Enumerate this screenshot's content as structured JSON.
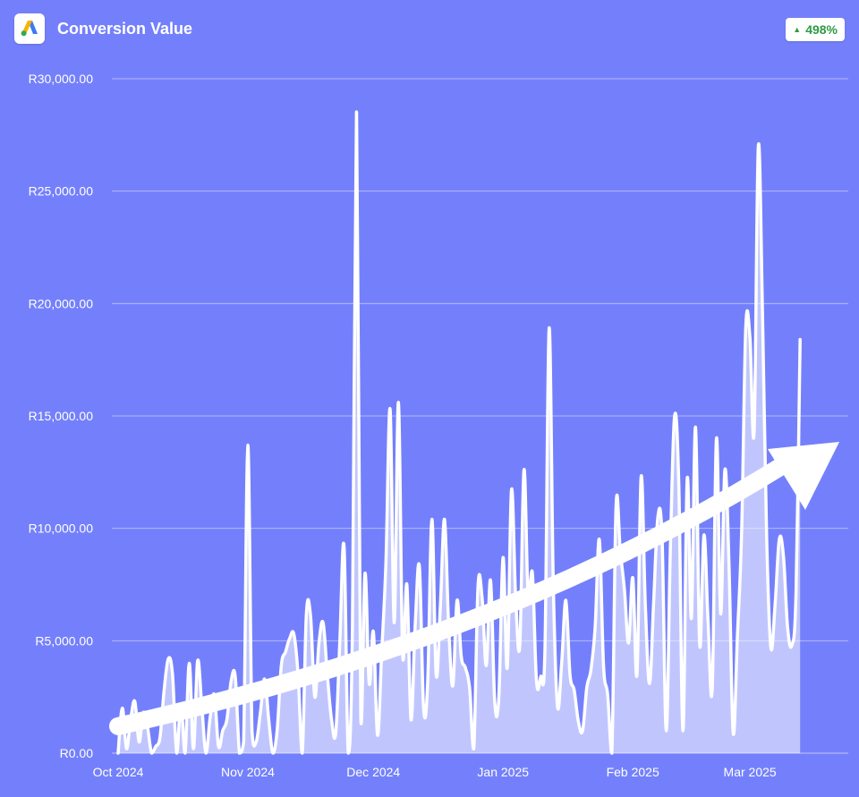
{
  "header": {
    "title": "Conversion Value",
    "badge": "498%",
    "logo_icon": "google-ads-logo"
  },
  "colors": {
    "background": "#7480fb",
    "line": "#ffffff",
    "badge_text": "#2e9a43"
  },
  "chart_data": {
    "type": "line",
    "title": "Conversion Value",
    "xlabel": "",
    "ylabel": "",
    "ylim": [
      0,
      30000
    ],
    "y_ticks": [
      "R0.00",
      "R5,000.00",
      "R10,000.00",
      "R15,000.00",
      "R20,000.00",
      "R25,000.00",
      "R30,000.00"
    ],
    "y_tick_values": [
      0,
      5000,
      10000,
      15000,
      20000,
      25000,
      30000
    ],
    "x_ticks": [
      "Oct 2024",
      "Nov 2024",
      "Dec 2024",
      "Jan 2025",
      "Feb 2025",
      "Mar 2025"
    ],
    "x_tick_days": [
      0,
      31,
      61,
      92,
      123,
      151
    ],
    "x_range_days": [
      0,
      173
    ],
    "grid": true,
    "legend": "none",
    "trend_arrow": true,
    "series": [
      {
        "values": [
          0,
          2000,
          200,
          1500,
          2300,
          500,
          1800,
          1200,
          0,
          300,
          700,
          2800,
          4200,
          3500,
          0,
          2200,
          0,
          4000,
          200,
          4100,
          2100,
          0,
          1600,
          2600,
          300,
          1000,
          1500,
          3200,
          3400,
          0,
          500,
          13700,
          1000,
          500,
          1800,
          3300,
          1500,
          0,
          1000,
          3900,
          4500,
          5100,
          5300,
          3500,
          0,
          6200,
          6100,
          2500,
          4900,
          5800,
          3500,
          1500,
          900,
          5000,
          9200,
          0,
          5700,
          28500,
          1500,
          8000,
          3100,
          5400,
          800,
          4500,
          8500,
          15300,
          5800,
          15600,
          4400,
          7500,
          1500,
          5700,
          8300,
          2000,
          3200,
          10400,
          3500,
          6500,
          10400,
          5700,
          3000,
          6800,
          4300,
          3800,
          2900,
          200,
          7400,
          6900,
          3900,
          7700,
          2300,
          2500,
          8700,
          3800,
          11700,
          7000,
          4800,
          12600,
          6900,
          8000,
          3200,
          3400,
          4600,
          18900,
          7600,
          2100,
          4000,
          6800,
          3500,
          2800,
          1400,
          1000,
          2900,
          3700,
          5600,
          9500,
          3900,
          2600,
          0,
          11000,
          9000,
          7300,
          4900,
          7800,
          3500,
          12300,
          6600,
          3100,
          6800,
          10500,
          9600,
          1000,
          9300,
          15000,
          12000,
          1000,
          12200,
          6000,
          14500,
          4800,
          9700,
          5800,
          2900,
          14000,
          6200,
          12600,
          8400,
          900,
          5200,
          9800,
          18900,
          18500,
          14300,
          27000,
          19500,
          9600,
          4700,
          6600,
          9500,
          8800,
          5600,
          4800,
          7100,
          18400
        ]
      }
    ],
    "trend": {
      "start_value": 1200,
      "end_value": 14000
    }
  }
}
